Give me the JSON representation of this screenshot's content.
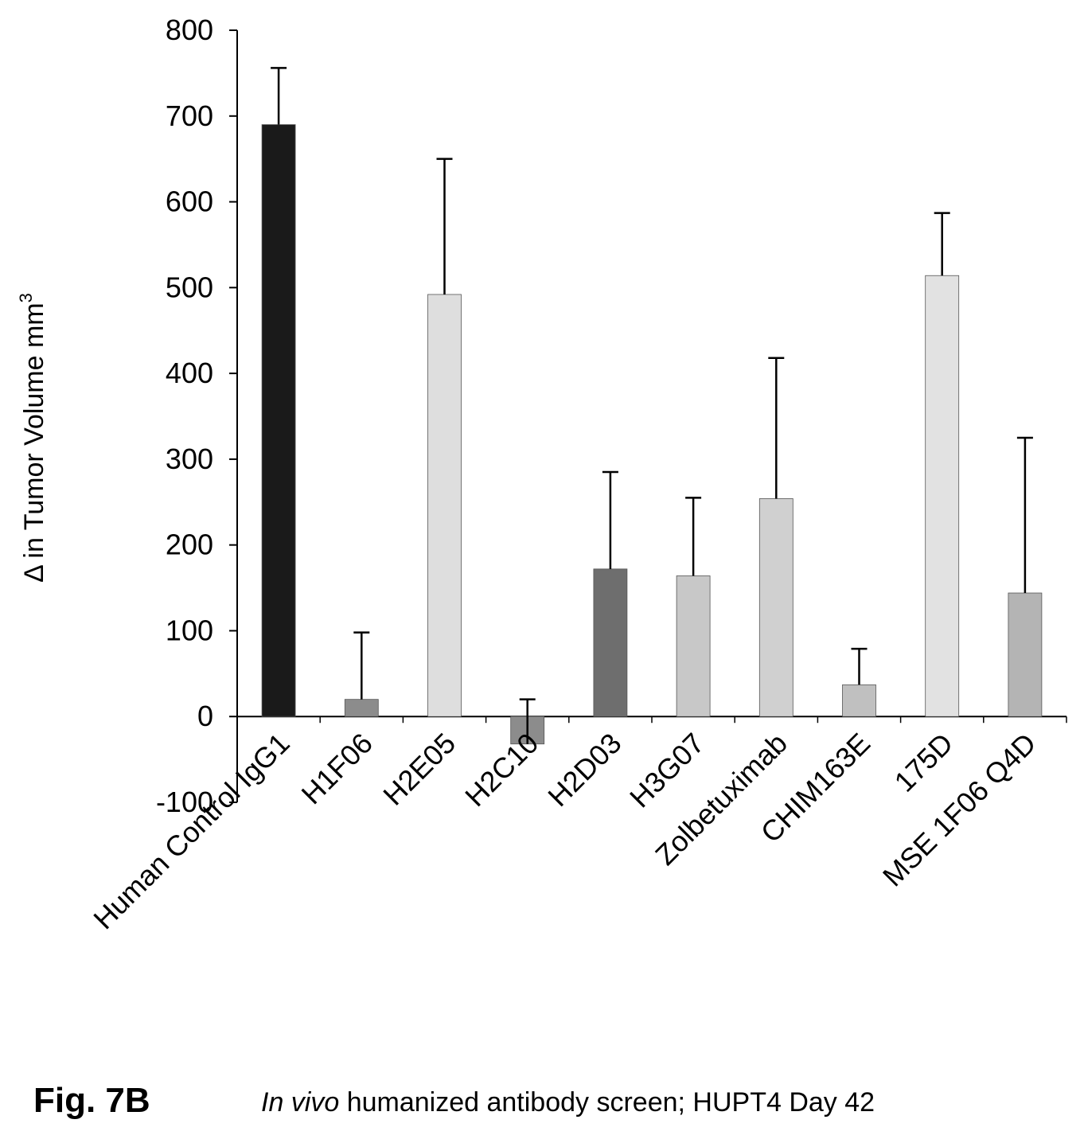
{
  "figure": {
    "label": "Fig. 7B",
    "caption_italic": "In vivo",
    "caption_rest": " humanized antibody screen; HUPT4 Day 42"
  },
  "chart_data": {
    "type": "bar",
    "ylabel": "Δ in Tumor Volume mm",
    "ylabel_superscript": "3",
    "ylim": [
      -100,
      800
    ],
    "yticks": [
      -100,
      0,
      100,
      200,
      300,
      400,
      500,
      600,
      700,
      800
    ],
    "categories": [
      "Human Control IgG1",
      "H1F06",
      "H2E05",
      "H2C10",
      "H2D03",
      "H3G07",
      "Zolbetuximab",
      "CHIM163E",
      "175D",
      "MSE 1F06 Q4D"
    ],
    "values": [
      690,
      20,
      492,
      -32,
      172,
      164,
      254,
      37,
      514,
      144
    ],
    "error_plus": [
      66,
      78,
      158,
      52,
      113,
      91,
      164,
      42,
      73,
      181
    ],
    "bar_colors": [
      "#1a1a1a",
      "#8c8c8c",
      "#dedede",
      "#8c8c8c",
      "#6e6e6e",
      "#c8c8c8",
      "#d0d0d0",
      "#c0c0c0",
      "#e2e2e2",
      "#b4b4b4"
    ],
    "grid": false,
    "legend": "none"
  }
}
